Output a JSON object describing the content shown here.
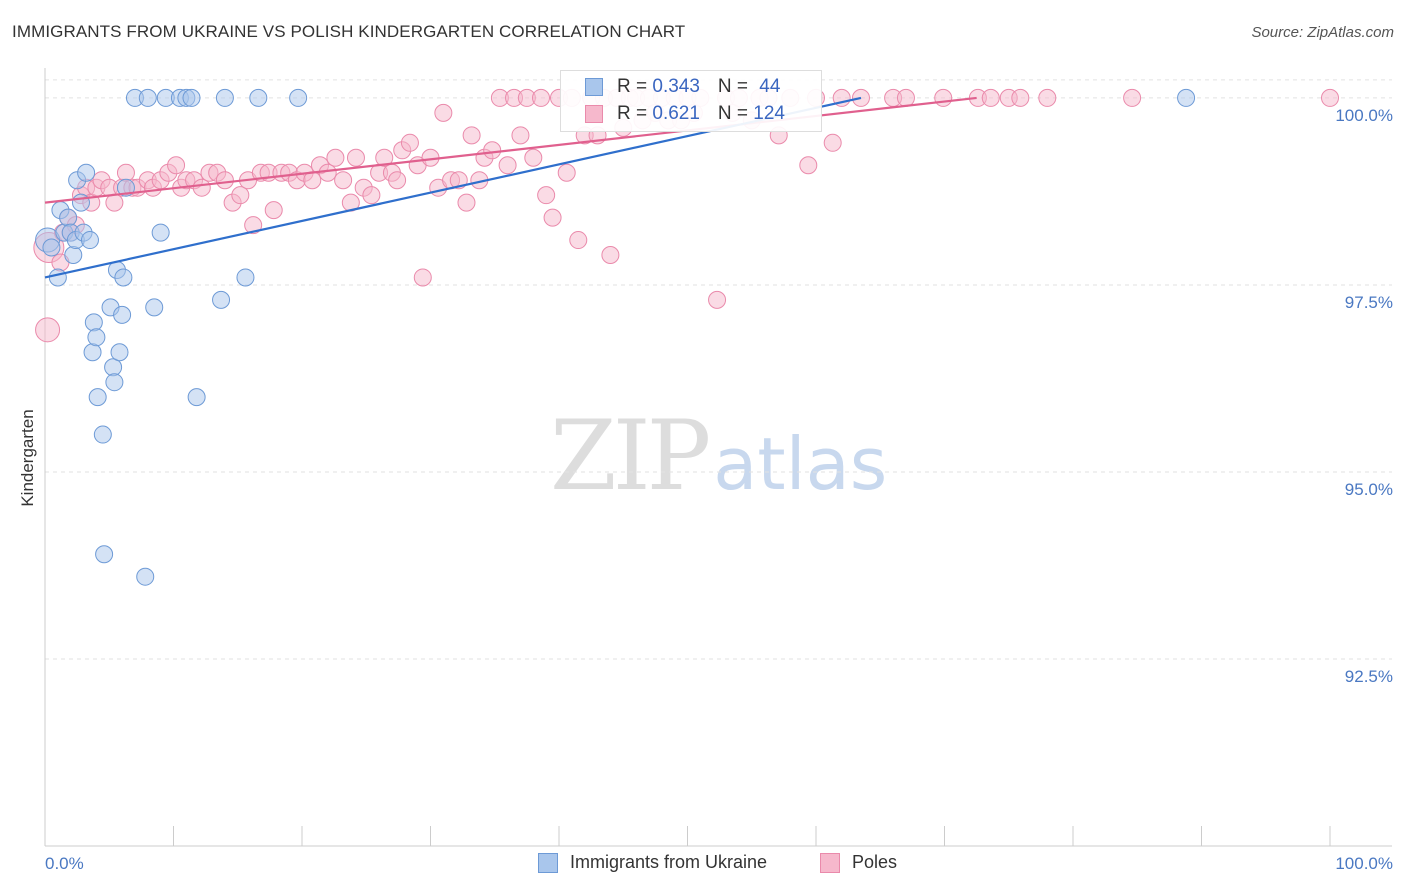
{
  "title": "IMMIGRANTS FROM UKRAINE VS POLISH KINDERGARTEN CORRELATION CHART",
  "source": "Source: ZipAtlas.com",
  "watermark": {
    "zip": "ZIP",
    "atlas": "atlas"
  },
  "legend": {
    "rows": [
      {
        "r_label": "R = ",
        "r_value": "0.343",
        "n_label": "N = ",
        "n_value": "44"
      },
      {
        "r_label": "R = ",
        "r_value": "0.621",
        "n_label": "N = ",
        "n_value": "124"
      }
    ]
  },
  "bottom_legend": {
    "ukraine": "Immigrants from Ukraine",
    "poles": "Poles"
  },
  "colors": {
    "blue_fill": "#a9c6ec",
    "blue_stroke": "#6d9ad6",
    "blue_line": "#2f6fcc",
    "pink_fill": "#f6b8cc",
    "pink_stroke": "#ea8aab",
    "pink_line": "#e0608e",
    "tick_text": "#4a78c2"
  },
  "chart_data": {
    "type": "scatter",
    "title": "IMMIGRANTS FROM UKRAINE VS POLISH KINDERGARTEN CORRELATION CHART",
    "xlabel": "",
    "ylabel": "Kindergarten",
    "xlim": [
      0,
      100
    ],
    "ylim": [
      90.0,
      100.4
    ],
    "x_tick_labels": [
      "0.0%",
      "100.0%"
    ],
    "y_ticks": [
      92.5,
      95.0,
      97.5,
      100.0
    ],
    "y_tick_labels": [
      "92.5%",
      "95.0%",
      "97.5%",
      "100.0%"
    ],
    "grid": "horizontal dashed",
    "series": [
      {
        "name": "Immigrants from Ukraine",
        "r": 0.343,
        "n": 44,
        "trend": {
          "x": [
            0,
            63.5
          ],
          "y": [
            97.6,
            100.0
          ]
        },
        "points": [
          [
            0.2,
            98.1,
            2
          ],
          [
            0.5,
            98.0,
            1
          ],
          [
            1.0,
            97.6,
            1
          ],
          [
            1.2,
            98.5,
            1
          ],
          [
            1.5,
            98.2,
            1
          ],
          [
            1.8,
            98.4,
            1
          ],
          [
            2.0,
            98.2,
            1
          ],
          [
            2.2,
            97.9,
            1
          ],
          [
            2.4,
            98.1,
            1
          ],
          [
            2.5,
            98.9,
            1
          ],
          [
            2.8,
            98.6,
            1
          ],
          [
            3.0,
            98.2,
            1
          ],
          [
            3.2,
            99.0,
            1
          ],
          [
            3.5,
            98.1,
            1
          ],
          [
            3.7,
            96.6,
            1
          ],
          [
            3.8,
            97.0,
            1
          ],
          [
            4.0,
            96.8,
            1
          ],
          [
            4.1,
            96.0,
            1
          ],
          [
            4.5,
            95.5,
            1
          ],
          [
            4.6,
            93.9,
            1
          ],
          [
            5.1,
            97.2,
            1
          ],
          [
            5.3,
            96.4,
            1
          ],
          [
            5.4,
            96.2,
            1
          ],
          [
            5.6,
            97.7,
            1
          ],
          [
            5.8,
            96.6,
            1
          ],
          [
            6.0,
            97.1,
            1
          ],
          [
            6.1,
            97.6,
            1
          ],
          [
            6.3,
            98.8,
            1
          ],
          [
            7.0,
            100.0,
            1
          ],
          [
            7.8,
            93.6,
            1
          ],
          [
            8.0,
            100.0,
            1
          ],
          [
            8.5,
            97.2,
            1
          ],
          [
            9.0,
            98.2,
            1
          ],
          [
            9.4,
            100.0,
            1
          ],
          [
            10.5,
            100.0,
            1
          ],
          [
            11.0,
            100.0,
            1
          ],
          [
            11.4,
            100.0,
            1
          ],
          [
            11.8,
            96.0,
            1
          ],
          [
            13.7,
            97.3,
            1
          ],
          [
            14.0,
            100.0,
            1
          ],
          [
            15.6,
            97.6,
            1
          ],
          [
            16.6,
            100.0,
            1
          ],
          [
            19.7,
            100.0,
            1
          ],
          [
            88.8,
            100.0,
            1
          ]
        ]
      },
      {
        "name": "Poles",
        "r": 0.621,
        "n": 124,
        "trend": {
          "x": [
            0,
            72.5
          ],
          "y": [
            98.6,
            100.0
          ]
        },
        "points": [
          [
            0.2,
            96.9,
            2
          ],
          [
            0.3,
            98.0,
            3
          ],
          [
            1.2,
            97.8,
            1
          ],
          [
            1.4,
            98.2,
            1
          ],
          [
            1.8,
            98.4,
            1
          ],
          [
            2.0,
            98.2,
            1
          ],
          [
            2.4,
            98.3,
            1
          ],
          [
            2.8,
            98.7,
            1
          ],
          [
            3.2,
            98.8,
            1
          ],
          [
            3.6,
            98.6,
            1
          ],
          [
            4.0,
            98.8,
            1
          ],
          [
            4.4,
            98.9,
            1
          ],
          [
            5.0,
            98.8,
            1
          ],
          [
            5.4,
            98.6,
            1
          ],
          [
            6.0,
            98.8,
            1
          ],
          [
            6.3,
            99.0,
            1
          ],
          [
            6.8,
            98.8,
            1
          ],
          [
            7.2,
            98.8,
            1
          ],
          [
            8.0,
            98.9,
            1
          ],
          [
            8.4,
            98.8,
            1
          ],
          [
            9.0,
            98.9,
            1
          ],
          [
            9.6,
            99.0,
            1
          ],
          [
            10.2,
            99.1,
            1
          ],
          [
            10.6,
            98.8,
            1
          ],
          [
            11.0,
            98.9,
            1
          ],
          [
            11.6,
            98.9,
            1
          ],
          [
            12.2,
            98.8,
            1
          ],
          [
            12.8,
            99.0,
            1
          ],
          [
            13.4,
            99.0,
            1
          ],
          [
            14.0,
            98.9,
            1
          ],
          [
            14.6,
            98.6,
            1
          ],
          [
            15.2,
            98.7,
            1
          ],
          [
            15.8,
            98.9,
            1
          ],
          [
            16.2,
            98.3,
            1
          ],
          [
            16.8,
            99.0,
            1
          ],
          [
            17.4,
            99.0,
            1
          ],
          [
            17.8,
            98.5,
            1
          ],
          [
            18.4,
            99.0,
            1
          ],
          [
            19.0,
            99.0,
            1
          ],
          [
            19.6,
            98.9,
            1
          ],
          [
            20.2,
            99.0,
            1
          ],
          [
            20.8,
            98.9,
            1
          ],
          [
            21.4,
            99.1,
            1
          ],
          [
            22.0,
            99.0,
            1
          ],
          [
            22.6,
            99.2,
            1
          ],
          [
            23.2,
            98.9,
            1
          ],
          [
            23.8,
            98.6,
            1
          ],
          [
            24.2,
            99.2,
            1
          ],
          [
            24.8,
            98.8,
            1
          ],
          [
            25.4,
            98.7,
            1
          ],
          [
            26.0,
            99.0,
            1
          ],
          [
            26.4,
            99.2,
            1
          ],
          [
            27.0,
            99.0,
            1
          ],
          [
            27.4,
            98.9,
            1
          ],
          [
            27.8,
            99.3,
            1
          ],
          [
            28.4,
            99.4,
            1
          ],
          [
            29.0,
            99.1,
            1
          ],
          [
            29.4,
            97.6,
            1
          ],
          [
            30.0,
            99.2,
            1
          ],
          [
            30.6,
            98.8,
            1
          ],
          [
            31.0,
            99.8,
            1
          ],
          [
            31.6,
            98.9,
            1
          ],
          [
            32.2,
            98.9,
            1
          ],
          [
            32.8,
            98.6,
            1
          ],
          [
            33.2,
            99.5,
            1
          ],
          [
            33.8,
            98.9,
            1
          ],
          [
            34.2,
            99.2,
            1
          ],
          [
            34.8,
            99.3,
            1
          ],
          [
            35.4,
            100.0,
            1
          ],
          [
            36.0,
            99.1,
            1
          ],
          [
            36.5,
            100.0,
            1
          ],
          [
            37.0,
            99.5,
            1
          ],
          [
            37.5,
            100.0,
            1
          ],
          [
            38.0,
            99.2,
            1
          ],
          [
            38.6,
            100.0,
            1
          ],
          [
            39.0,
            98.7,
            1
          ],
          [
            39.5,
            98.4,
            1
          ],
          [
            40.0,
            100.0,
            1
          ],
          [
            40.6,
            99.0,
            1
          ],
          [
            41.0,
            100.0,
            1
          ],
          [
            41.5,
            98.1,
            1
          ],
          [
            42.0,
            99.5,
            1
          ],
          [
            42.5,
            100.0,
            1
          ],
          [
            43.0,
            99.5,
            1
          ],
          [
            43.5,
            100.0,
            1
          ],
          [
            44.0,
            97.9,
            1
          ],
          [
            44.5,
            100.0,
            1
          ],
          [
            45.0,
            99.6,
            1
          ],
          [
            45.5,
            100.0,
            1
          ],
          [
            46.0,
            100.0,
            1
          ],
          [
            46.5,
            99.7,
            1
          ],
          [
            47.0,
            100.0,
            1
          ],
          [
            47.5,
            99.8,
            1
          ],
          [
            48.0,
            100.0,
            1
          ],
          [
            48.5,
            99.7,
            1
          ],
          [
            49.0,
            100.0,
            1
          ],
          [
            49.5,
            99.7,
            1
          ],
          [
            50.0,
            100.0,
            1
          ],
          [
            50.5,
            99.8,
            1
          ],
          [
            51.0,
            100.0,
            1
          ],
          [
            52.3,
            97.3,
            1
          ],
          [
            53.0,
            100.0,
            1
          ],
          [
            53.5,
            99.8,
            1
          ],
          [
            54.0,
            100.0,
            1
          ],
          [
            55.0,
            99.7,
            1
          ],
          [
            55.6,
            100.0,
            1
          ],
          [
            56.3,
            100.0,
            1
          ],
          [
            57.1,
            99.5,
            1
          ],
          [
            58.0,
            100.0,
            1
          ],
          [
            59.4,
            99.1,
            1
          ],
          [
            60.0,
            100.0,
            1
          ],
          [
            61.3,
            99.4,
            1
          ],
          [
            62.0,
            100.0,
            1
          ],
          [
            63.5,
            100.0,
            1
          ],
          [
            66.0,
            100.0,
            1
          ],
          [
            67.0,
            100.0,
            1
          ],
          [
            69.9,
            100.0,
            1
          ],
          [
            72.6,
            100.0,
            1
          ],
          [
            73.6,
            100.0,
            1
          ],
          [
            75.0,
            100.0,
            1
          ],
          [
            75.9,
            100.0,
            1
          ],
          [
            78.0,
            100.0,
            1
          ],
          [
            84.6,
            100.0,
            1
          ],
          [
            100.0,
            100.0,
            1
          ]
        ]
      }
    ]
  }
}
